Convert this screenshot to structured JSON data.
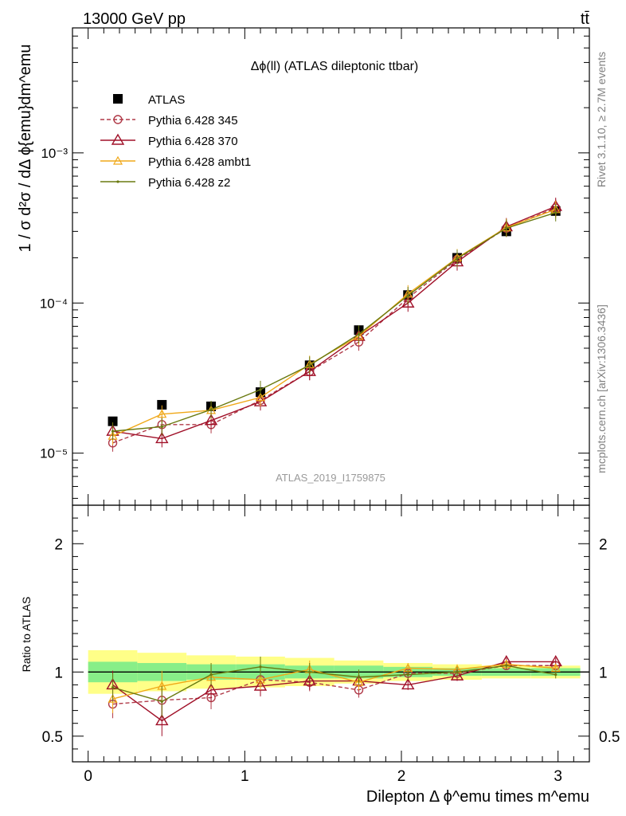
{
  "header": {
    "left": "13000 GeV pp",
    "right": "tt̄"
  },
  "side_labels": {
    "rivet": "Rivet 3.1.10, ≥ 2.7M events",
    "mcplots": "mcplots.cern.ch [arXiv:1306.3436]"
  },
  "chart_data": [
    {
      "type": "scatter",
      "title": "Δϕ(ll) (ATLAS dileptonic ttbar)",
      "ylabel": "1 / σ  d²σ / dΔ ϕ{emu}dm^emu",
      "watermark": "ATLAS_2019_I1759875",
      "yscale": "log",
      "ylim": [
        4.5e-06,
        0.0068
      ],
      "xlim": [
        -0.1,
        3.2
      ],
      "y_ticks": [
        {
          "value": 1e-05,
          "label": "10⁻⁵"
        },
        {
          "value": 0.0001,
          "label": "10⁻⁴"
        },
        {
          "value": 0.001,
          "label": "10⁻³"
        }
      ],
      "x": [
        0.157,
        0.471,
        0.785,
        1.1,
        1.414,
        1.728,
        2.042,
        2.356,
        2.67,
        2.985
      ],
      "x_half_width": 0.157,
      "series": [
        {
          "name": "ATLAS",
          "color": "#000000",
          "marker": "square",
          "line": "none",
          "values": [
            1.63e-05,
            2.1e-05,
            2.05e-05,
            2.55e-05,
            3.85e-05,
            6.6e-05,
            0.000113,
            0.0002,
            0.0003,
            0.00041
          ]
        },
        {
          "name": "Pythia 6.428 345",
          "color": "#b03a48",
          "marker": "circle-open",
          "line": "dashed",
          "values": [
            1.17e-05,
            1.55e-05,
            1.55e-05,
            2.25e-05,
            3.5e-05,
            5.5e-05,
            0.000108,
            0.000195,
            0.000315,
            0.00043
          ]
        },
        {
          "name": "Pythia 6.428 370",
          "color": "#a01028",
          "marker": "triangle-open",
          "line": "solid",
          "values": [
            1.4e-05,
            1.25e-05,
            1.65e-05,
            2.2e-05,
            3.5e-05,
            6e-05,
            0.0001,
            0.000188,
            0.000322,
            0.00044
          ]
        },
        {
          "name": "Pythia 6.428 ambt1",
          "color": "#f0a818",
          "marker": "triangle-open-small",
          "line": "solid",
          "values": [
            1.3e-05,
            1.82e-05,
            1.93e-05,
            2.35e-05,
            3.9e-05,
            6e-05,
            0.000115,
            0.0002,
            0.000318,
            0.00042
          ]
        },
        {
          "name": "Pythia 6.428 z2",
          "color": "#6a7a10",
          "marker": "dot",
          "line": "solid",
          "values": [
            1.4e-05,
            1.5e-05,
            1.95e-05,
            2.65e-05,
            3.85e-05,
            6.2e-05,
            0.000112,
            0.000198,
            0.000315,
            0.0004
          ]
        }
      ]
    },
    {
      "type": "scatter",
      "ylabel": "Ratio to ATLAS",
      "xlabel": "Dilepton Δ ϕ^emu times m^emu",
      "ylim": [
        0.3,
        2.3
      ],
      "xlim": [
        -0.1,
        3.2
      ],
      "y_ticks": [
        0.5,
        1,
        2
      ],
      "y_tick_labels": [
        "0.5",
        "1",
        "2"
      ],
      "x_ticks": [
        0,
        1,
        2,
        3
      ],
      "x_tick_labels": [
        "0",
        "1",
        "2",
        "3"
      ],
      "reference": 1,
      "x": [
        0.157,
        0.471,
        0.785,
        1.1,
        1.414,
        1.728,
        2.042,
        2.356,
        2.67,
        2.985
      ],
      "x_half_width": 0.157,
      "band_yellow_halfwidth": [
        0.17,
        0.15,
        0.13,
        0.12,
        0.11,
        0.09,
        0.07,
        0.06,
        0.05,
        0.05
      ],
      "band_green_halfwidth": [
        0.08,
        0.07,
        0.06,
        0.06,
        0.05,
        0.05,
        0.04,
        0.03,
        0.03,
        0.03
      ],
      "series": [
        {
          "name": "Pythia 6.428 345",
          "color": "#b03a48",
          "marker": "circle-open",
          "line": "dashed",
          "values": [
            0.75,
            0.78,
            0.8,
            0.94,
            0.92,
            0.86,
            0.99,
            0.99,
            1.05,
            1.05
          ]
        },
        {
          "name": "Pythia 6.428 370",
          "color": "#a01028",
          "marker": "triangle-open",
          "line": "solid",
          "values": [
            0.9,
            0.62,
            0.86,
            0.89,
            0.93,
            0.93,
            0.9,
            0.97,
            1.08,
            1.08
          ]
        },
        {
          "name": "Pythia 6.428 ambt1",
          "color": "#f0a818",
          "marker": "triangle-open-small",
          "line": "solid",
          "values": [
            0.79,
            0.89,
            0.96,
            0.94,
            1.02,
            0.92,
            1.03,
            1.02,
            1.06,
            1.03
          ]
        },
        {
          "name": "Pythia 6.428 z2",
          "color": "#6a7a10",
          "marker": "dot",
          "line": "solid",
          "values": [
            0.88,
            0.77,
            0.98,
            1.04,
            1.0,
            0.96,
            0.98,
            1.0,
            1.05,
            0.98
          ]
        }
      ],
      "errors": [
        0.11,
        0.12,
        0.09,
        0.08,
        0.07,
        0.06,
        0.04,
        0.04,
        0.03,
        0.03
      ]
    }
  ]
}
